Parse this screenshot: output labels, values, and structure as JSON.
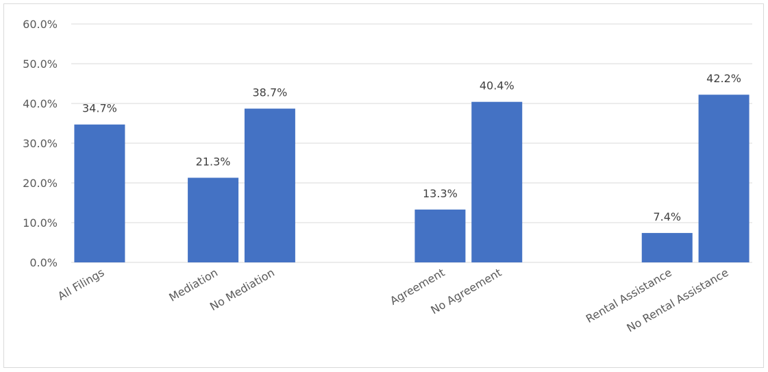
{
  "chart_data": {
    "type": "bar",
    "title": "",
    "xlabel": "",
    "ylabel": "",
    "ylim": [
      0,
      60
    ],
    "y_tick_labels": [
      "0.0%",
      "10.0%",
      "20.0%",
      "30.0%",
      "40.0%",
      "50.0%",
      "60.0%"
    ],
    "y_ticks": [
      0,
      10,
      20,
      30,
      40,
      50,
      60
    ],
    "grid": true,
    "legend": "none",
    "bar_color": "#4472C4",
    "categories": [
      "All Filings",
      "",
      "Mediation",
      "No Mediation",
      "",
      "",
      "Agreement",
      "No Agreement",
      "",
      "",
      "Rental Assistance",
      "No Rental Assistance"
    ],
    "values": [
      34.7,
      null,
      21.3,
      38.7,
      null,
      null,
      13.3,
      40.4,
      null,
      null,
      7.4,
      42.2
    ],
    "data_labels": [
      "34.7%",
      "",
      "21.3%",
      "38.7%",
      "",
      "",
      "13.3%",
      "40.4%",
      "",
      "",
      "7.4%",
      "42.2%"
    ]
  }
}
